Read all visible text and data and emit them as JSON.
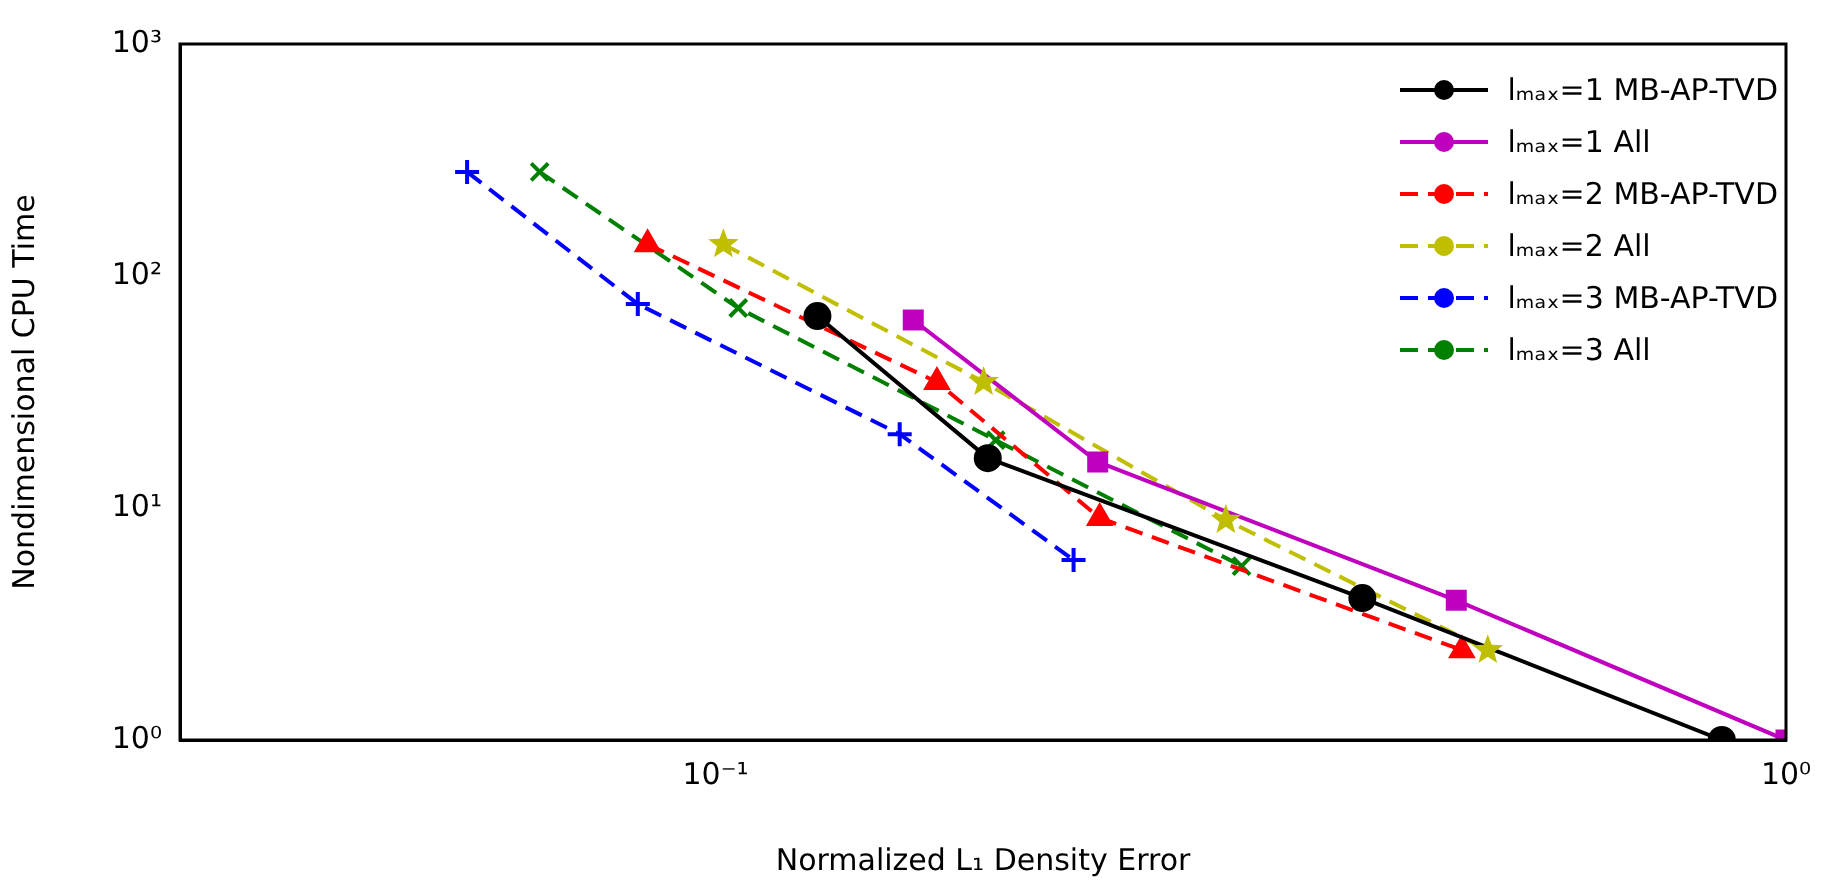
{
  "chart_data": {
    "type": "line",
    "xlabel": "Normalized L₁ Density Error",
    "ylabel": "Nondimensional CPU Time",
    "log": "xy",
    "grid": false,
    "legend": "top right",
    "xlim": [
      0.0316,
      1
    ],
    "xticks": [
      {
        "value": 0.1,
        "label": "10⁻¹"
      },
      {
        "value": 1,
        "label": "10⁰"
      }
    ],
    "ylim": [
      1,
      1000
    ],
    "yticks": [
      {
        "value": 1,
        "label": "10⁰"
      },
      {
        "value": 10,
        "label": "10¹"
      },
      {
        "value": 100,
        "label": "10²"
      },
      {
        "value": 1000,
        "label": "10³"
      }
    ],
    "series": [
      {
        "name": "lₘₐₓ=1 MB-AP-TVD",
        "color": "#000000",
        "marker": "circle",
        "line_style": "solid",
        "x": [
          0.1245,
          0.1796,
          0.402,
          0.871
        ],
        "values": [
          67.2,
          16.4,
          4.09,
          1.0
        ]
      },
      {
        "name": "lₘₐₓ=1 All",
        "color": "#bf00bf",
        "marker": "square",
        "line_style": "solid",
        "x": [
          0.153,
          0.2275,
          0.492,
          1.0
        ],
        "values": [
          64.6,
          15.8,
          4.0,
          1.0
        ]
      },
      {
        "name": "lₘₐₓ=2 MB-AP-TVD",
        "color": "#ff0000",
        "marker": "triangle",
        "line_style": "dashed",
        "x": [
          0.0864,
          0.161,
          0.2285,
          0.498
        ],
        "values": [
          137,
          34.9,
          9.06,
          2.44
        ]
      },
      {
        "name": "lₘₐₓ=2 All",
        "color": "#bfbf00",
        "marker": "star",
        "line_style": "dashed",
        "x": [
          0.1017,
          0.178,
          0.2997,
          0.5265
        ],
        "values": [
          137,
          34.9,
          8.88,
          2.44
        ]
      },
      {
        "name": "lₘₐₓ=3 MB-AP-TVD",
        "color": "#0000ff",
        "marker": "cross",
        "line_style": "dashed",
        "x": [
          0.0586,
          0.0846,
          0.1486,
          0.216
        ],
        "values": [
          281,
          75.7,
          20.8,
          5.97
        ]
      },
      {
        "name": "lₘₐₓ=3 All",
        "color": "#008000",
        "marker": "x",
        "line_style": "dashed",
        "x": [
          0.0685,
          0.105,
          0.1827,
          0.31
        ],
        "values": [
          281,
          72.8,
          19.6,
          5.62
        ]
      }
    ]
  }
}
